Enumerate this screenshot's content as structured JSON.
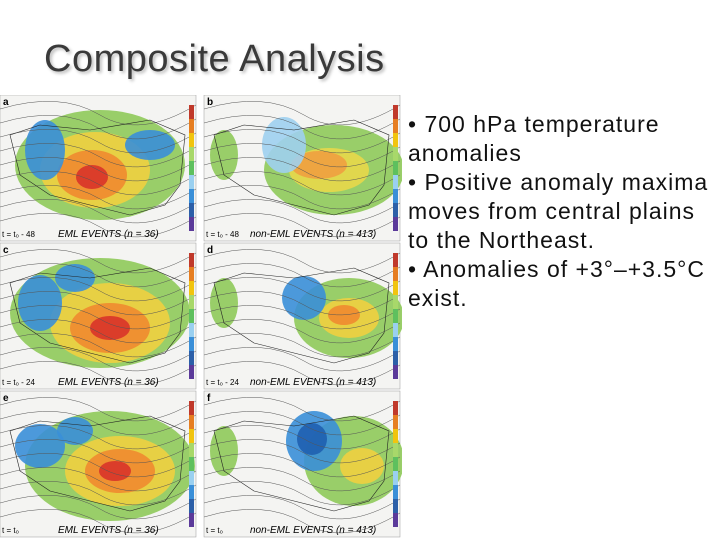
{
  "title": "Composite Analysis",
  "bullets": [
    "• 700 hPa temperature anomalies",
    "• Positive anomaly maxima moves from central plains to the Northeast.",
    "• Anomalies of +3°–+3.5°C exist."
  ],
  "panels": [
    {
      "letter": "a",
      "time": "t = t₀ - 48",
      "caption": "EML EVENTS (n = 36)"
    },
    {
      "letter": "b",
      "time": "t = t₀ - 48",
      "caption": "non-EML EVENTS (n = 413)"
    },
    {
      "letter": "c",
      "time": "t = t₀ - 24",
      "caption": "EML EVENTS (n = 36)"
    },
    {
      "letter": "d",
      "time": "t = t₀ - 24",
      "caption": "non-EML EVENTS (n = 413)"
    },
    {
      "letter": "e",
      "time": "t = t₀",
      "caption": "EML EVENTS (n = 36)"
    },
    {
      "letter": "f",
      "time": "t = t₀",
      "caption": "non-EML EVENTS (n = 413)"
    }
  ]
}
